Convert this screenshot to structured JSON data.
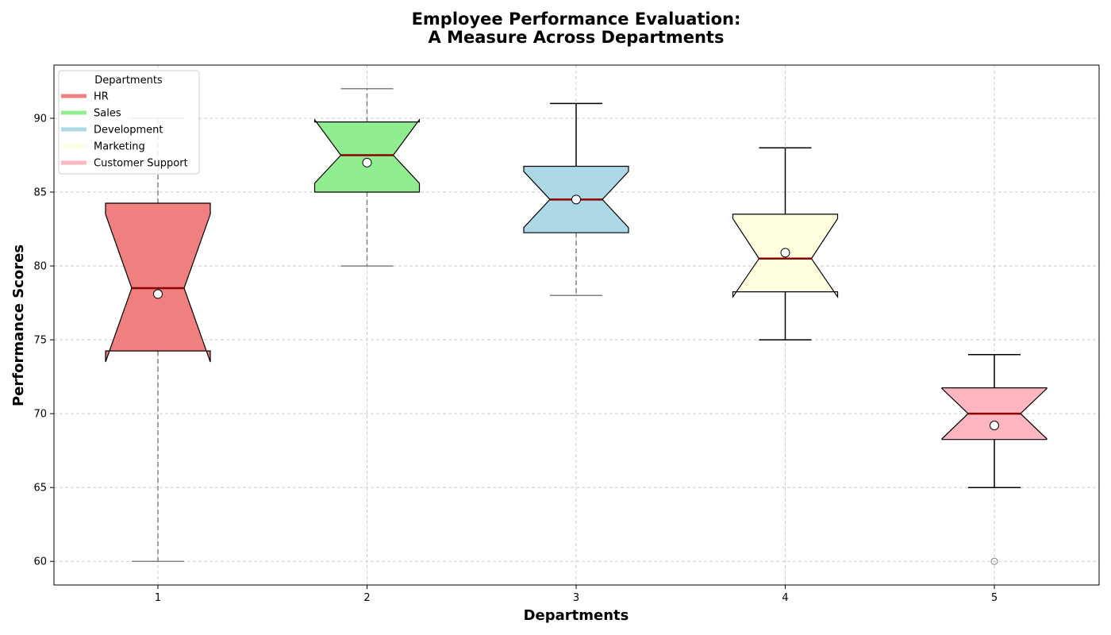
{
  "chart_data": {
    "type": "box",
    "title_lines": [
      "Employee Performance Evaluation:",
      "A Measure Across Departments"
    ],
    "xlabel": "Departments",
    "ylabel": "Performance Scores",
    "categories": [
      "1",
      "2",
      "3",
      "4",
      "5"
    ],
    "ylim": [
      58.4,
      93.6
    ],
    "yticks": [
      60,
      65,
      70,
      75,
      80,
      85,
      90
    ],
    "grid": true,
    "legend": {
      "title": "Departments",
      "placement": "top-left",
      "entries": [
        "HR",
        "Sales",
        "Development",
        "Marketing",
        "Customer Support"
      ]
    },
    "series": [
      {
        "name": "HR",
        "color": "#f08080",
        "whisker_style": "dashed",
        "whisker_color": "#808080",
        "q1": 74.25,
        "median": 78.5,
        "q3": 84.25,
        "whisker_low": 60,
        "whisker_high": 90,
        "notch_low": 73.5,
        "notch_high": 83.5,
        "mean": 78.1,
        "outliers": []
      },
      {
        "name": "Sales",
        "color": "#90ee90",
        "whisker_style": "dashed",
        "whisker_color": "#808080",
        "q1": 85,
        "median": 87.5,
        "q3": 89.75,
        "whisker_low": 80,
        "whisker_high": 92,
        "notch_low": 85.6,
        "notch_high": 89.9,
        "mean": 87.0,
        "outliers": []
      },
      {
        "name": "Development",
        "color": "#add8e6",
        "whisker_style": "mixed",
        "whisker_color": "#000000",
        "q1": 82.25,
        "median": 84.5,
        "q3": 86.75,
        "whisker_low": 78,
        "whisker_high": 91,
        "notch_low": 82.6,
        "notch_high": 86.4,
        "mean": 84.5,
        "outliers": []
      },
      {
        "name": "Marketing",
        "color": "#ffffe0",
        "whisker_style": "solid",
        "whisker_color": "#000000",
        "q1": 78.25,
        "median": 80.5,
        "q3": 83.5,
        "whisker_low": 75,
        "whisker_high": 88,
        "notch_low": 77.9,
        "notch_high": 83.2,
        "mean": 80.9,
        "outliers": []
      },
      {
        "name": "Customer Support",
        "color": "#ffb6c1",
        "whisker_style": "solid",
        "whisker_color": "#000000",
        "q1": 68.25,
        "median": 70,
        "q3": 71.75,
        "whisker_low": 65,
        "whisker_high": 74,
        "notch_low": 68.3,
        "notch_high": 71.7,
        "mean": 69.2,
        "outliers": [
          60
        ]
      }
    ]
  }
}
